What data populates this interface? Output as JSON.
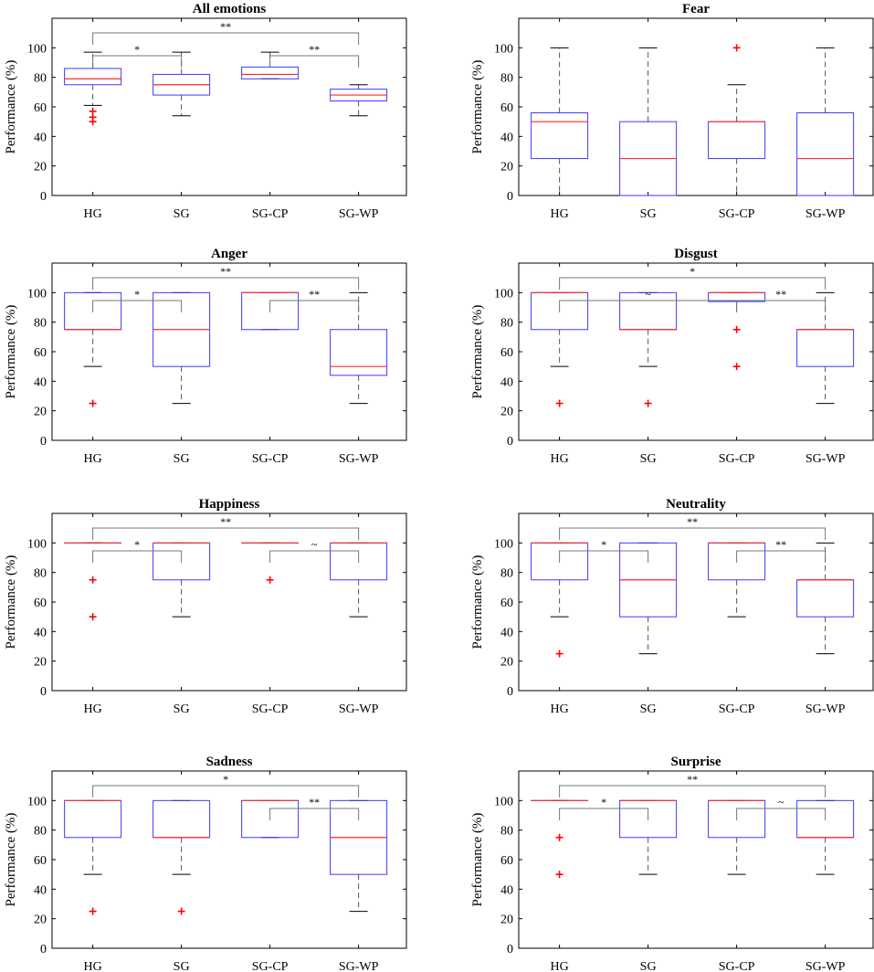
{
  "chart_data": [
    {
      "type": "box",
      "title": "All emotions",
      "ylabel": "Performance (%)",
      "ylim": [
        0,
        120
      ],
      "yticks": [
        "0",
        "20",
        "40",
        "60",
        "80",
        "100"
      ],
      "categories": [
        "HG",
        "SG",
        "SG-CP",
        "SG-WP"
      ],
      "boxes": [
        {
          "q1": 75,
          "median": 79,
          "q3": 86,
          "whisker_low": 61,
          "whisker_high": 97,
          "outliers": [
            57,
            53,
            50
          ]
        },
        {
          "q1": 68,
          "median": 75,
          "q3": 82,
          "whisker_low": 54,
          "whisker_high": 97,
          "outliers": []
        },
        {
          "q1": 79,
          "median": 82,
          "q3": 87,
          "whisker_low": 79,
          "whisker_high": 97,
          "outliers": []
        },
        {
          "q1": 64,
          "median": 68,
          "q3": 72,
          "whisker_low": 54,
          "whisker_high": 75,
          "outliers": []
        }
      ],
      "significance": [
        {
          "from": 0,
          "to": 3,
          "label": "**",
          "level": 1
        },
        {
          "from": 0,
          "to": 1,
          "label": "*",
          "level": 0
        },
        {
          "from": 2,
          "to": 3,
          "label": "**",
          "level": 0
        }
      ]
    },
    {
      "type": "box",
      "title": "Fear",
      "ylabel": "Performance (%)",
      "ylim": [
        0,
        120
      ],
      "yticks": [
        "0",
        "20",
        "40",
        "60",
        "80",
        "100"
      ],
      "categories": [
        "HG",
        "SG",
        "SG-CP",
        "SG-WP"
      ],
      "boxes": [
        {
          "q1": 25,
          "median": 50,
          "q3": 56,
          "whisker_low": 0,
          "whisker_high": 100,
          "outliers": []
        },
        {
          "q1": 0,
          "median": 25,
          "q3": 50,
          "whisker_low": 0,
          "whisker_high": 100,
          "outliers": []
        },
        {
          "q1": 25,
          "median": 50,
          "q3": 50,
          "whisker_low": 0,
          "whisker_high": 75,
          "outliers": [
            100
          ]
        },
        {
          "q1": 0,
          "median": 25,
          "q3": 56,
          "whisker_low": 0,
          "whisker_high": 100,
          "outliers": []
        }
      ],
      "significance": []
    },
    {
      "type": "box",
      "title": "Anger",
      "ylabel": "Performance (%)",
      "ylim": [
        0,
        120
      ],
      "yticks": [
        "0",
        "20",
        "40",
        "60",
        "80",
        "100"
      ],
      "categories": [
        "HG",
        "SG",
        "SG-CP",
        "SG-WP"
      ],
      "boxes": [
        {
          "q1": 75,
          "median": 75,
          "q3": 100,
          "whisker_low": 50,
          "whisker_high": 100,
          "outliers": [
            25
          ]
        },
        {
          "q1": 50,
          "median": 75,
          "q3": 100,
          "whisker_low": 25,
          "whisker_high": 100,
          "outliers": []
        },
        {
          "q1": 75,
          "median": 100,
          "q3": 100,
          "whisker_low": 75,
          "whisker_high": 100,
          "outliers": []
        },
        {
          "q1": 44,
          "median": 50,
          "q3": 75,
          "whisker_low": 25,
          "whisker_high": 100,
          "outliers": []
        }
      ],
      "significance": [
        {
          "from": 0,
          "to": 3,
          "label": "**",
          "level": 1
        },
        {
          "from": 0,
          "to": 1,
          "label": "*",
          "level": 0
        },
        {
          "from": 2,
          "to": 3,
          "label": "**",
          "level": 0
        }
      ]
    },
    {
      "type": "box",
      "title": "Disgust",
      "ylabel": "Performance (%)",
      "ylim": [
        0,
        120
      ],
      "yticks": [
        "0",
        "20",
        "40",
        "60",
        "80",
        "100"
      ],
      "categories": [
        "HG",
        "SG",
        "SG-CP",
        "SG-WP"
      ],
      "boxes": [
        {
          "q1": 75,
          "median": 100,
          "q3": 100,
          "whisker_low": 50,
          "whisker_high": 100,
          "outliers": [
            25
          ]
        },
        {
          "q1": 75,
          "median": 75,
          "q3": 100,
          "whisker_low": 50,
          "whisker_high": 100,
          "outliers": [
            25
          ]
        },
        {
          "q1": 94,
          "median": 100,
          "q3": 100,
          "whisker_low": 94,
          "whisker_high": 100,
          "outliers": [
            75,
            50
          ]
        },
        {
          "q1": 50,
          "median": 75,
          "q3": 75,
          "whisker_low": 25,
          "whisker_high": 100,
          "outliers": []
        }
      ],
      "significance": [
        {
          "from": 0,
          "to": 3,
          "label": "*",
          "level": 1
        },
        {
          "from": 0,
          "to": 2,
          "label": "~",
          "level": 0
        },
        {
          "from": 2,
          "to": 3,
          "label": "**",
          "level": 0
        }
      ]
    },
    {
      "type": "box",
      "title": "Happiness",
      "ylabel": "Performance (%)",
      "ylim": [
        0,
        120
      ],
      "yticks": [
        "0",
        "20",
        "40",
        "60",
        "80",
        "100"
      ],
      "categories": [
        "HG",
        "SG",
        "SG-CP",
        "SG-WP"
      ],
      "boxes": [
        {
          "q1": 100,
          "median": 100,
          "q3": 100,
          "whisker_low": 100,
          "whisker_high": 100,
          "outliers": [
            75,
            50
          ]
        },
        {
          "q1": 75,
          "median": 100,
          "q3": 100,
          "whisker_low": 50,
          "whisker_high": 100,
          "outliers": []
        },
        {
          "q1": 100,
          "median": 100,
          "q3": 100,
          "whisker_low": 100,
          "whisker_high": 100,
          "outliers": [
            75
          ]
        },
        {
          "q1": 75,
          "median": 100,
          "q3": 100,
          "whisker_low": 50,
          "whisker_high": 100,
          "outliers": []
        }
      ],
      "significance": [
        {
          "from": 0,
          "to": 3,
          "label": "**",
          "level": 1
        },
        {
          "from": 0,
          "to": 1,
          "label": "*",
          "level": 0
        },
        {
          "from": 2,
          "to": 3,
          "label": "~",
          "level": 0
        }
      ]
    },
    {
      "type": "box",
      "title": "Neutrality",
      "ylabel": "Performance (%)",
      "ylim": [
        0,
        120
      ],
      "yticks": [
        "0",
        "20",
        "40",
        "60",
        "80",
        "100"
      ],
      "categories": [
        "HG",
        "SG",
        "SG-CP",
        "SG-WP"
      ],
      "boxes": [
        {
          "q1": 75,
          "median": 100,
          "q3": 100,
          "whisker_low": 50,
          "whisker_high": 100,
          "outliers": [
            25
          ]
        },
        {
          "q1": 50,
          "median": 75,
          "q3": 100,
          "whisker_low": 25,
          "whisker_high": 100,
          "outliers": []
        },
        {
          "q1": 75,
          "median": 100,
          "q3": 100,
          "whisker_low": 50,
          "whisker_high": 100,
          "outliers": []
        },
        {
          "q1": 50,
          "median": 75,
          "q3": 75,
          "whisker_low": 25,
          "whisker_high": 100,
          "outliers": []
        }
      ],
      "significance": [
        {
          "from": 0,
          "to": 3,
          "label": "**",
          "level": 1
        },
        {
          "from": 0,
          "to": 1,
          "label": "*",
          "level": 0
        },
        {
          "from": 2,
          "to": 3,
          "label": "**",
          "level": 0
        }
      ]
    },
    {
      "type": "box",
      "title": "Sadness",
      "ylabel": "Performance (%)",
      "ylim": [
        0,
        120
      ],
      "yticks": [
        "0",
        "20",
        "40",
        "60",
        "80",
        "100"
      ],
      "categories": [
        "HG",
        "SG",
        "SG-CP",
        "SG-WP"
      ],
      "boxes": [
        {
          "q1": 75,
          "median": 100,
          "q3": 100,
          "whisker_low": 50,
          "whisker_high": 100,
          "outliers": [
            25
          ]
        },
        {
          "q1": 75,
          "median": 75,
          "q3": 100,
          "whisker_low": 50,
          "whisker_high": 100,
          "outliers": [
            25
          ]
        },
        {
          "q1": 75,
          "median": 100,
          "q3": 100,
          "whisker_low": 75,
          "whisker_high": 100,
          "outliers": []
        },
        {
          "q1": 50,
          "median": 75,
          "q3": 100,
          "whisker_low": 25,
          "whisker_high": 100,
          "outliers": []
        }
      ],
      "significance": [
        {
          "from": 0,
          "to": 3,
          "label": "*",
          "level": 1
        },
        {
          "from": 2,
          "to": 3,
          "label": "**",
          "level": 0
        }
      ]
    },
    {
      "type": "box",
      "title": "Surprise",
      "ylabel": "Performance (%)",
      "ylim": [
        0,
        120
      ],
      "yticks": [
        "0",
        "20",
        "40",
        "60",
        "80",
        "100"
      ],
      "categories": [
        "HG",
        "SG",
        "SG-CP",
        "SG-WP"
      ],
      "boxes": [
        {
          "q1": 100,
          "median": 100,
          "q3": 100,
          "whisker_low": 100,
          "whisker_high": 100,
          "outliers": [
            75,
            50
          ]
        },
        {
          "q1": 75,
          "median": 100,
          "q3": 100,
          "whisker_low": 50,
          "whisker_high": 100,
          "outliers": []
        },
        {
          "q1": 75,
          "median": 100,
          "q3": 100,
          "whisker_low": 50,
          "whisker_high": 100,
          "outliers": []
        },
        {
          "q1": 75,
          "median": 75,
          "q3": 100,
          "whisker_low": 50,
          "whisker_high": 100,
          "outliers": []
        }
      ],
      "significance": [
        {
          "from": 0,
          "to": 3,
          "label": "**",
          "level": 1
        },
        {
          "from": 0,
          "to": 1,
          "label": "*",
          "level": 0
        },
        {
          "from": 2,
          "to": 3,
          "label": "~",
          "level": 0
        }
      ]
    }
  ],
  "colors": {
    "box": "#3a3aff",
    "median": "#ff2a2a",
    "whisker": "#555555",
    "outlier": "#ff0000",
    "axis": "#000000",
    "bracket": "#777777"
  }
}
